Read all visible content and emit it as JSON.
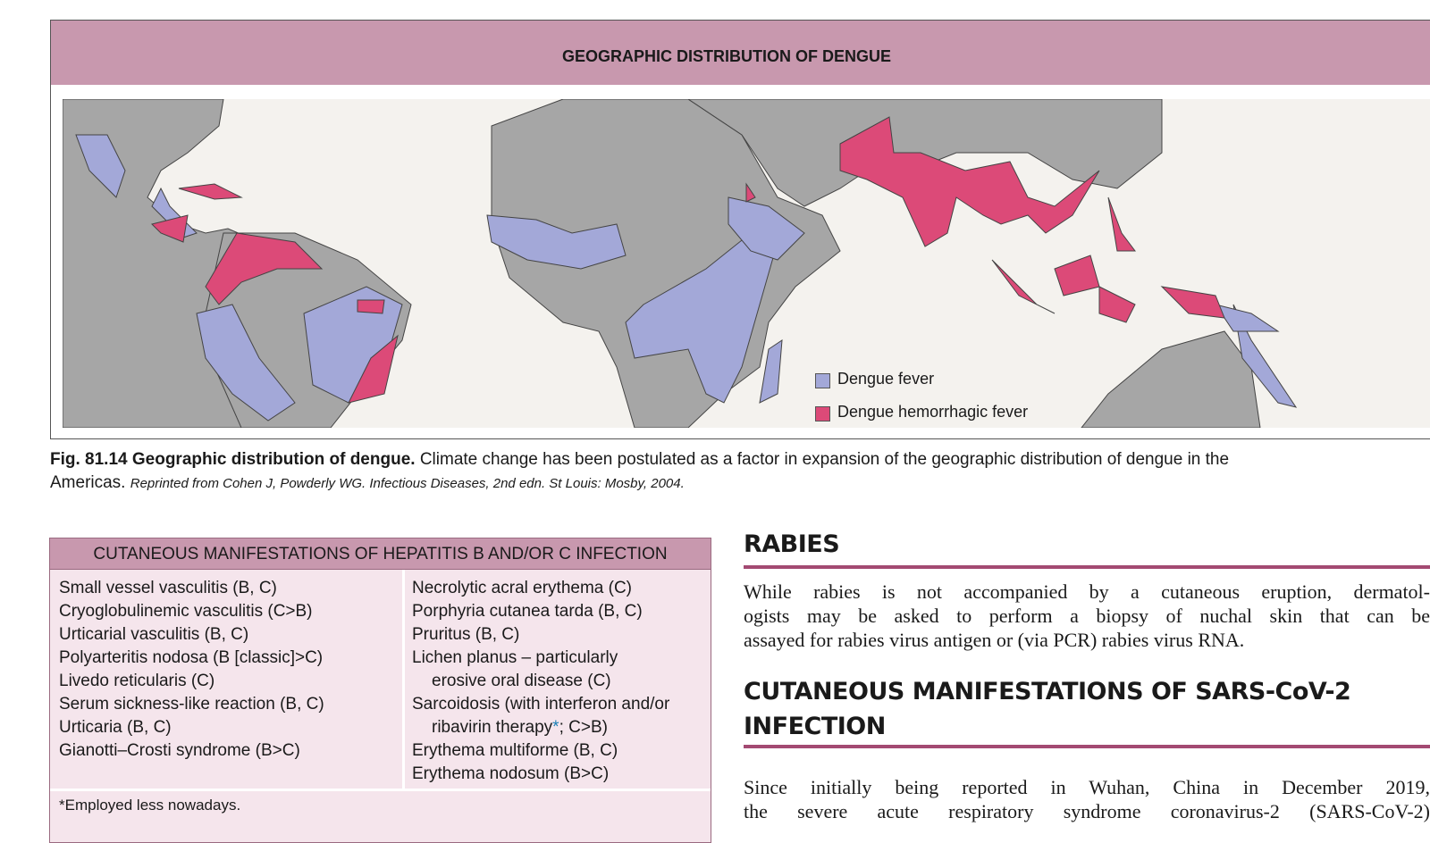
{
  "figure": {
    "title": "GEOGRAPHIC DISTRIBUTION OF DENGUE",
    "legend": [
      "Dengue fever",
      "Dengue hemorrhagic fever"
    ],
    "caption": {
      "label": "Fig. 81.14 Geographic distribution of dengue.",
      "text_line1": "Climate change has been postulated as a factor in expansion of the geographic distribution of dengue in the",
      "text_line2": "Americas.",
      "source": "Reprinted from Cohen J, Powderly WG. Infectious Diseases, 2nd edn. St Louis: Mosby, 2004."
    }
  },
  "table": {
    "title": "CUTANEOUS MANIFESTATIONS OF HEPATITIS B AND/OR C INFECTION",
    "left": [
      "Small vessel vasculitis (B, C)",
      "Cryoglobulinemic vasculitis (C>B)",
      "Urticarial vasculitis (B, C)",
      "Polyarteritis nodosa (B [classic]>C)",
      "Livedo reticularis (C)",
      "Serum sickness-like reaction (B, C)",
      "Urticaria (B, C)",
      "Gianotti–Crosti syndrome (B>C)"
    ],
    "right": [
      "Necrolytic acral erythema (C)",
      "Porphyria cutanea tarda (B, C)",
      "Pruritus (B, C)",
      "Lichen planus – particularly",
      "erosive oral disease (C)",
      "Sarcoidosis (with interferon and/or",
      [
        "ribavirin therapy",
        "*",
        "; C>B)"
      ],
      "Erythema multiforme (B, C)",
      "Erythema nodosum (B>C)"
    ],
    "footnote": "*Employed less nowadays."
  },
  "rabies": {
    "heading": "RABIES",
    "lines": [
      "While rabies is not accompanied by a cutaneous eruption, dermatol-",
      "ogists may be asked to perform a biopsy of nuchal skin that can be",
      "assayed for rabies virus antigen or (via PCR) rabies virus RNA."
    ]
  },
  "sars": {
    "heading_lines": [
      "CUTANEOUS MANIFESTATIONS OF SARS-CoV-2",
      "INFECTION"
    ],
    "lines": [
      "Since initially being reported in Wuhan, China in December 2019,",
      "the severe acute respiratory syndrome coronavirus-2 (SARS-CoV-2)"
    ]
  }
}
